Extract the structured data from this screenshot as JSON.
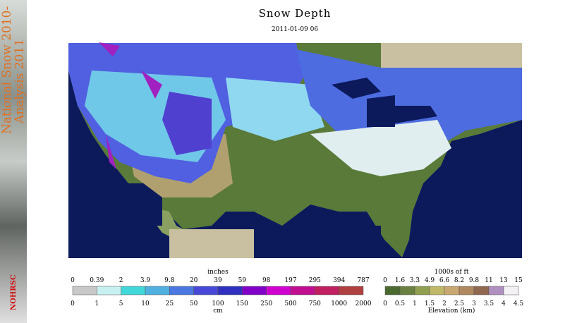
{
  "header": {
    "title": "Snow Depth",
    "timestamp": "2011-01-09 06"
  },
  "sidebar": {
    "line1": "National Snow 2010-",
    "line2": "Analysis 2011",
    "logo": "NOHRSC"
  },
  "snow_legend": {
    "top_unit": "inches",
    "bottom_unit": "cm",
    "top_labels": [
      "0",
      "0.39",
      "2",
      "3.9",
      "9.8",
      "20",
      "39",
      "59",
      "98",
      "197",
      "295",
      "394",
      "787"
    ],
    "bottom_labels": [
      "0",
      "1",
      "5",
      "10",
      "25",
      "50",
      "100",
      "150",
      "250",
      "500",
      "750",
      "1000",
      "2000"
    ]
  },
  "elevation_legend": {
    "top_unit": "1000s of ft",
    "bottom_unit": "Elevation (km)",
    "top_labels": [
      "0",
      "1.6",
      "3.3",
      "4.9",
      "6.6",
      "8.2",
      "9.8",
      "11",
      "13",
      "15"
    ],
    "bottom_labels": [
      "0",
      "0.5",
      "1",
      "1.5",
      "2",
      "2.5",
      "3",
      "3.5",
      "4",
      "4.5"
    ]
  }
}
